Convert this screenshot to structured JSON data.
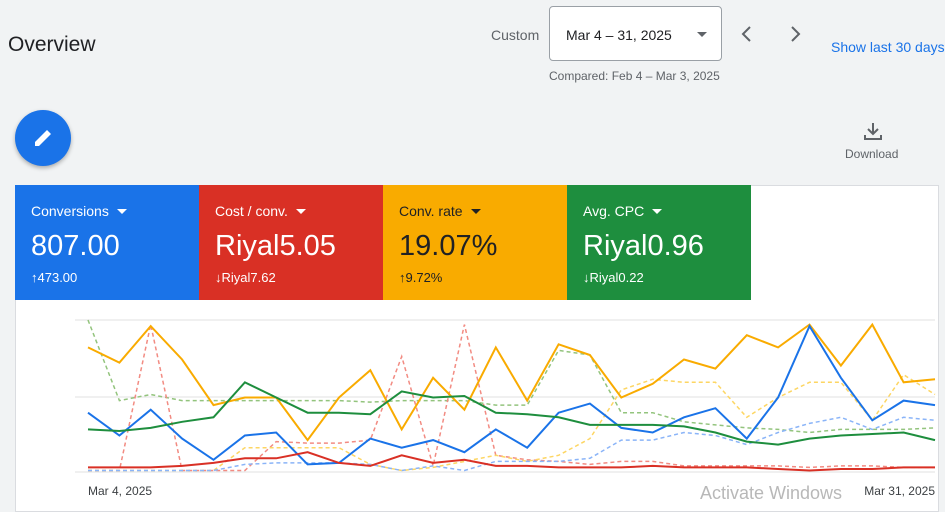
{
  "header": {
    "title": "Overview",
    "range_label": "Custom",
    "date_range": "Mar 4 – 31, 2025",
    "compared": "Compared: Feb 4 – Mar 3, 2025",
    "show_last": "Show last 30 days",
    "download": "Download"
  },
  "cards": [
    {
      "label": "Conversions",
      "value": "807.00",
      "change": "↑473.00",
      "color": "#1a73e8"
    },
    {
      "label": "Cost / conv.",
      "value": "Riyal5.05",
      "change": "↓Riyal7.62",
      "color": "#d93025"
    },
    {
      "label": "Conv. rate",
      "value": "19.07%",
      "change": "↑9.72%",
      "color": "#f9ab00"
    },
    {
      "label": "Avg. CPC",
      "value": "Riyal0.96",
      "change": "↓Riyal0.22",
      "color": "#1e8e3e"
    }
  ],
  "watermark": "Activate Windows",
  "chart_data": {
    "type": "line",
    "ylim": [
      0,
      100
    ],
    "categories": [
      "Mar 4, 2025",
      null,
      null,
      null,
      null,
      null,
      null,
      null,
      null,
      null,
      null,
      null,
      null,
      null,
      null,
      null,
      null,
      null,
      null,
      null,
      null,
      null,
      null,
      null,
      null,
      null,
      null,
      "Mar 31, 2025"
    ],
    "series": [
      {
        "color": "#93c47d",
        "dashed": true,
        "values": [
          100,
          47,
          51,
          47,
          47,
          47,
          47,
          47,
          47,
          46,
          47,
          47,
          47,
          44,
          44,
          80,
          77,
          39,
          39,
          33,
          31,
          29,
          28,
          26,
          28,
          28,
          28,
          29
        ]
      },
      {
        "color": "#f28b82",
        "dashed": true,
        "values": [
          1,
          1,
          97,
          1,
          1,
          1,
          20,
          19,
          19,
          21,
          76,
          4,
          97,
          11,
          8,
          7,
          5,
          7,
          7,
          4,
          4,
          4,
          4,
          3,
          4,
          4,
          3,
          3
        ]
      },
      {
        "color": "#fdd663",
        "dashed": true,
        "values": [
          1,
          1,
          1,
          1,
          1,
          16,
          16,
          16,
          16,
          5,
          1,
          3,
          7,
          11,
          7,
          11,
          22,
          54,
          61,
          59,
          59,
          36,
          49,
          59,
          59,
          34,
          64,
          51
        ]
      },
      {
        "color": "#8ab4f8",
        "dashed": true,
        "values": [
          1,
          1,
          1,
          1,
          1,
          5,
          6,
          6,
          6,
          5,
          1,
          4,
          1,
          7,
          7,
          7,
          9,
          21,
          21,
          26,
          24,
          18,
          26,
          32,
          36,
          28,
          36,
          34
        ]
      },
      {
        "color": "#f9ab00",
        "dashed": false,
        "values": [
          82,
          72,
          96,
          74,
          44,
          49,
          49,
          21,
          49,
          67,
          28,
          62,
          41,
          82,
          47,
          84,
          77,
          49,
          58,
          74,
          68,
          90,
          82,
          97,
          70,
          97,
          59,
          61
        ]
      },
      {
        "color": "#1a73e8",
        "dashed": false,
        "values": [
          39,
          24,
          41,
          22,
          8,
          24,
          26,
          5,
          6,
          22,
          16,
          21,
          13,
          28,
          16,
          39,
          45,
          29,
          26,
          36,
          42,
          22,
          49,
          96,
          62,
          34,
          47,
          44
        ]
      },
      {
        "color": "#1e8e3e",
        "dashed": false,
        "values": [
          28,
          27,
          29,
          33,
          36,
          59,
          49,
          39,
          39,
          38,
          53,
          49,
          50,
          39,
          38,
          36,
          31,
          31,
          31,
          30,
          26,
          20,
          18,
          22,
          24,
          25,
          26,
          21
        ]
      },
      {
        "color": "#d93025",
        "dashed": false,
        "values": [
          3,
          3,
          3,
          4,
          6,
          9,
          9,
          13,
          6,
          4,
          11,
          6,
          8,
          4,
          4,
          3,
          3,
          3,
          4,
          3,
          3,
          3,
          2,
          1,
          2,
          2,
          3,
          3
        ]
      }
    ]
  }
}
